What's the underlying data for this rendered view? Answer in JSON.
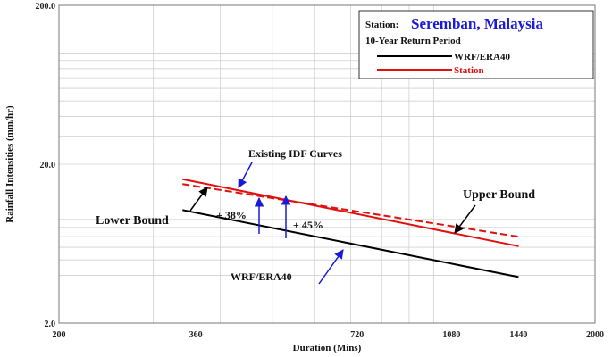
{
  "chart_data": {
    "type": "line",
    "x_scale": "log",
    "y_scale": "log",
    "xlim": [
      200,
      2000
    ],
    "ylim": [
      2.0,
      200.0
    ],
    "x_ticks": [
      200,
      360,
      720,
      1080,
      1440,
      2000
    ],
    "x_tick_labels": [
      "200",
      "360",
      "720",
      "1080",
      "1440",
      "2000"
    ],
    "y_ticks": [
      2.0,
      20.0,
      200.0
    ],
    "y_tick_labels": [
      "2.0",
      "20.0",
      "200.0"
    ],
    "xlabel": "Duration (Mins)",
    "ylabel": "Rainfall Intensities (mm/hr)",
    "grid": true,
    "legend": {
      "placement": "top-right",
      "station_prefix": "Station:",
      "station_name": "Seremban, Malaysia",
      "subtitle": "10-Year Return Period",
      "entries": [
        "WRF/ERA40",
        "Station"
      ]
    },
    "colors": {
      "wrf": "#000000",
      "station": "#e01010",
      "annotation": "#1a1ad6"
    },
    "series": [
      {
        "name": "WRF/ERA40",
        "style": "solid",
        "color": "#000000",
        "x": [
          340,
          1440
        ],
        "y": [
          10.3,
          3.9
        ]
      },
      {
        "name": "Station",
        "style": "solid",
        "color": "#e01010",
        "x": [
          340,
          1440
        ],
        "y": [
          16.1,
          6.1
        ]
      },
      {
        "style": "dashed",
        "color": "#e01010",
        "x": [
          340,
          1440
        ],
        "y": [
          15.0,
          7.0
        ]
      }
    ],
    "annotations": {
      "existing_idf": "Existing IDF Curves",
      "upper_bound": "Upper Bound",
      "lower_bound": "Lower Bound",
      "pct_38": "+ 38%",
      "pct_45": "+ 45%",
      "wrf_label": "WRF/ERA40"
    }
  }
}
